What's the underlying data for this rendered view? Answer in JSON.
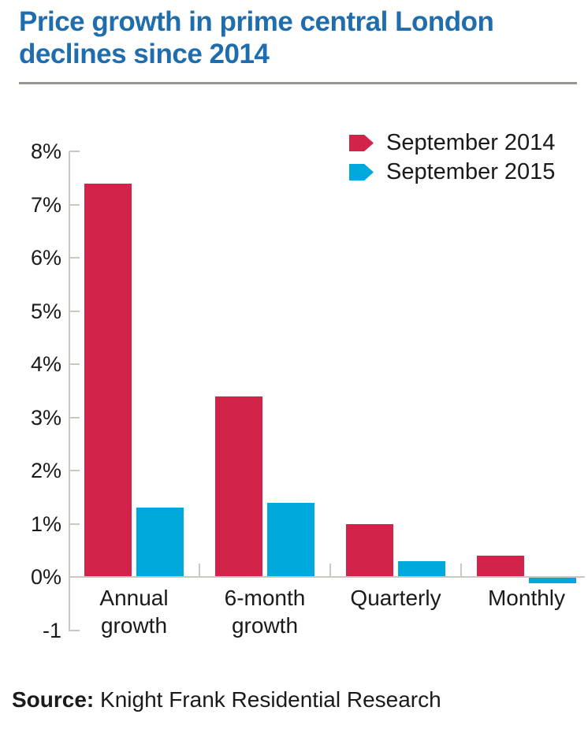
{
  "page": {
    "title_lines": [
      "Price growth in prime central London",
      "declines since 2014"
    ],
    "source_label": "Source:",
    "source_text": " Knight Frank Residential Research"
  },
  "colors": {
    "title": "#1f6dac",
    "separator": "#97978f",
    "axis": "#c9c9c4",
    "text": "#1a1a1a",
    "series_2014": "#d2234b",
    "series_2015": "#00a9dc"
  },
  "chart_data": {
    "type": "bar",
    "title": "Price growth in prime central London declines since 2014",
    "categories": [
      "Annual growth",
      "6-month growth",
      "Quarterly",
      "Monthly"
    ],
    "category_labels": [
      "Annual\ngrowth",
      "6-month\ngrowth",
      "Quarterly",
      "Monthly"
    ],
    "series": [
      {
        "name": "September 2014",
        "color": "#d2234b",
        "values": [
          7.4,
          3.4,
          1.0,
          0.4
        ]
      },
      {
        "name": "September 2015",
        "color": "#00a9dc",
        "values": [
          1.3,
          1.4,
          0.3,
          -0.1
        ]
      }
    ],
    "xlabel": "",
    "ylabel": "",
    "unit": "%",
    "ylim": [
      -1,
      8
    ],
    "y_tick_labels": [
      "8%",
      "7%",
      "6%",
      "5%",
      "4%",
      "3%",
      "2%",
      "1%",
      "0%",
      "-1"
    ],
    "y_tick_values": [
      8,
      7,
      6,
      5,
      4,
      3,
      2,
      1,
      0,
      -1
    ],
    "grid": false,
    "legend_position": "top-right",
    "source": "Source: Knight Frank Residential Research"
  }
}
